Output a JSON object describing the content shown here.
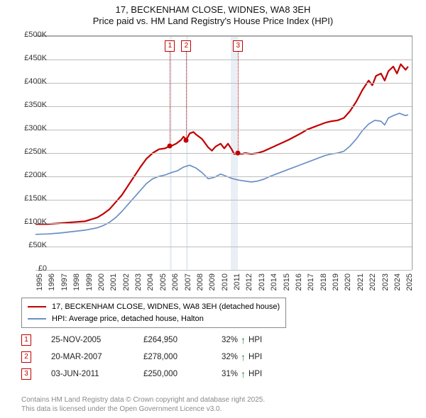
{
  "title": {
    "line1": "17, BECKENHAM CLOSE, WIDNES, WA8 3EH",
    "line2": "Price paid vs. HM Land Registry's House Price Index (HPI)"
  },
  "chart": {
    "type": "line",
    "background_color": "#ffffff",
    "grid_color": "#bdbdbd",
    "xlim": [
      1995,
      2025.5
    ],
    "ylim": [
      0,
      500000
    ],
    "ytick_step": 50000,
    "ytick_labels": [
      "£0",
      "£50K",
      "£100K",
      "£150K",
      "£200K",
      "£250K",
      "£300K",
      "£350K",
      "£400K",
      "£450K",
      "£500K"
    ],
    "xtick_years": [
      1995,
      1996,
      1997,
      1998,
      1999,
      2000,
      2001,
      2002,
      2003,
      2004,
      2005,
      2006,
      2007,
      2008,
      2009,
      2010,
      2011,
      2012,
      2013,
      2014,
      2015,
      2016,
      2017,
      2018,
      2019,
      2020,
      2021,
      2022,
      2023,
      2024,
      2025
    ],
    "shade_ranges": [
      [
        2005.9,
        2006.05
      ],
      [
        2007.22,
        2007.35
      ],
      [
        2010.8,
        2011.42
      ]
    ],
    "shade_color": "#e6ecf5",
    "series": [
      {
        "name": "price_paid",
        "color": "#c00000",
        "width": 2.2,
        "label": "17, BECKENHAM CLOSE, WIDNES, WA8 3EH (detached house)",
        "data": [
          [
            1995,
            98000
          ],
          [
            1996,
            98000
          ],
          [
            1997,
            100000
          ],
          [
            1998,
            102000
          ],
          [
            1999,
            104000
          ],
          [
            2000,
            112000
          ],
          [
            2000.5,
            120000
          ],
          [
            2001,
            130000
          ],
          [
            2001.5,
            145000
          ],
          [
            2002,
            160000
          ],
          [
            2002.5,
            180000
          ],
          [
            2003,
            200000
          ],
          [
            2003.5,
            220000
          ],
          [
            2004,
            238000
          ],
          [
            2004.5,
            250000
          ],
          [
            2005,
            258000
          ],
          [
            2005.5,
            260000
          ],
          [
            2005.9,
            264950
          ],
          [
            2006,
            265000
          ],
          [
            2006.4,
            270000
          ],
          [
            2006.8,
            278000
          ],
          [
            2007,
            285000
          ],
          [
            2007.22,
            278000
          ],
          [
            2007.5,
            292000
          ],
          [
            2007.8,
            295000
          ],
          [
            2008,
            290000
          ],
          [
            2008.5,
            280000
          ],
          [
            2009,
            262000
          ],
          [
            2009.3,
            255000
          ],
          [
            2009.6,
            264000
          ],
          [
            2010,
            270000
          ],
          [
            2010.3,
            260000
          ],
          [
            2010.6,
            270000
          ],
          [
            2010.9,
            258000
          ],
          [
            2011.1,
            248000
          ],
          [
            2011.42,
            250000
          ],
          [
            2011.7,
            248000
          ],
          [
            2012,
            250000
          ],
          [
            2012.5,
            248000
          ],
          [
            2013,
            250000
          ],
          [
            2013.5,
            254000
          ],
          [
            2014,
            260000
          ],
          [
            2014.5,
            266000
          ],
          [
            2015,
            272000
          ],
          [
            2015.5,
            278000
          ],
          [
            2016,
            285000
          ],
          [
            2016.5,
            292000
          ],
          [
            2017,
            300000
          ],
          [
            2017.5,
            305000
          ],
          [
            2018,
            310000
          ],
          [
            2018.5,
            315000
          ],
          [
            2019,
            318000
          ],
          [
            2019.5,
            320000
          ],
          [
            2020,
            325000
          ],
          [
            2020.5,
            340000
          ],
          [
            2021,
            360000
          ],
          [
            2021.5,
            385000
          ],
          [
            2022,
            405000
          ],
          [
            2022.3,
            395000
          ],
          [
            2022.6,
            415000
          ],
          [
            2023,
            420000
          ],
          [
            2023.3,
            405000
          ],
          [
            2023.6,
            425000
          ],
          [
            2024,
            435000
          ],
          [
            2024.3,
            420000
          ],
          [
            2024.6,
            440000
          ],
          [
            2025,
            428000
          ],
          [
            2025.2,
            435000
          ]
        ]
      },
      {
        "name": "hpi",
        "color": "#6a8fc5",
        "width": 1.7,
        "label": "HPI: Average price, detached house, Halton",
        "data": [
          [
            1995,
            76000
          ],
          [
            1996,
            77000
          ],
          [
            1997,
            79000
          ],
          [
            1998,
            82000
          ],
          [
            1999,
            85000
          ],
          [
            2000,
            90000
          ],
          [
            2000.5,
            95000
          ],
          [
            2001,
            102000
          ],
          [
            2001.5,
            112000
          ],
          [
            2002,
            125000
          ],
          [
            2002.5,
            140000
          ],
          [
            2003,
            155000
          ],
          [
            2003.5,
            170000
          ],
          [
            2004,
            185000
          ],
          [
            2004.5,
            195000
          ],
          [
            2005,
            200000
          ],
          [
            2005.5,
            203000
          ],
          [
            2006,
            208000
          ],
          [
            2006.5,
            212000
          ],
          [
            2007,
            220000
          ],
          [
            2007.5,
            224000
          ],
          [
            2008,
            218000
          ],
          [
            2008.5,
            208000
          ],
          [
            2009,
            195000
          ],
          [
            2009.5,
            198000
          ],
          [
            2010,
            205000
          ],
          [
            2010.5,
            200000
          ],
          [
            2011,
            195000
          ],
          [
            2011.5,
            192000
          ],
          [
            2012,
            190000
          ],
          [
            2012.5,
            188000
          ],
          [
            2013,
            190000
          ],
          [
            2013.5,
            194000
          ],
          [
            2014,
            200000
          ],
          [
            2014.5,
            205000
          ],
          [
            2015,
            210000
          ],
          [
            2015.5,
            215000
          ],
          [
            2016,
            220000
          ],
          [
            2016.5,
            225000
          ],
          [
            2017,
            230000
          ],
          [
            2017.5,
            235000
          ],
          [
            2018,
            240000
          ],
          [
            2018.5,
            245000
          ],
          [
            2019,
            248000
          ],
          [
            2019.5,
            250000
          ],
          [
            2020,
            254000
          ],
          [
            2020.5,
            265000
          ],
          [
            2021,
            280000
          ],
          [
            2021.5,
            298000
          ],
          [
            2022,
            312000
          ],
          [
            2022.5,
            320000
          ],
          [
            2023,
            318000
          ],
          [
            2023.3,
            310000
          ],
          [
            2023.6,
            325000
          ],
          [
            2024,
            330000
          ],
          [
            2024.5,
            335000
          ],
          [
            2025,
            330000
          ],
          [
            2025.2,
            332000
          ]
        ]
      }
    ],
    "markers": [
      {
        "n": "1",
        "x": 2005.9,
        "y": 264950
      },
      {
        "n": "2",
        "x": 2007.22,
        "y": 278000
      },
      {
        "n": "3",
        "x": 2011.42,
        "y": 250000
      }
    ]
  },
  "sales": [
    {
      "n": "1",
      "date": "25-NOV-2005",
      "price": "£264,950",
      "diff": "32%",
      "dir": "up",
      "vs": "HPI"
    },
    {
      "n": "2",
      "date": "20-MAR-2007",
      "price": "£278,000",
      "diff": "32%",
      "dir": "up",
      "vs": "HPI"
    },
    {
      "n": "3",
      "date": "03-JUN-2011",
      "price": "£250,000",
      "diff": "31%",
      "dir": "up",
      "vs": "HPI"
    }
  ],
  "footer": {
    "line1": "Contains HM Land Registry data © Crown copyright and database right 2025.",
    "line2": "This data is licensed under the Open Government Licence v3.0."
  }
}
